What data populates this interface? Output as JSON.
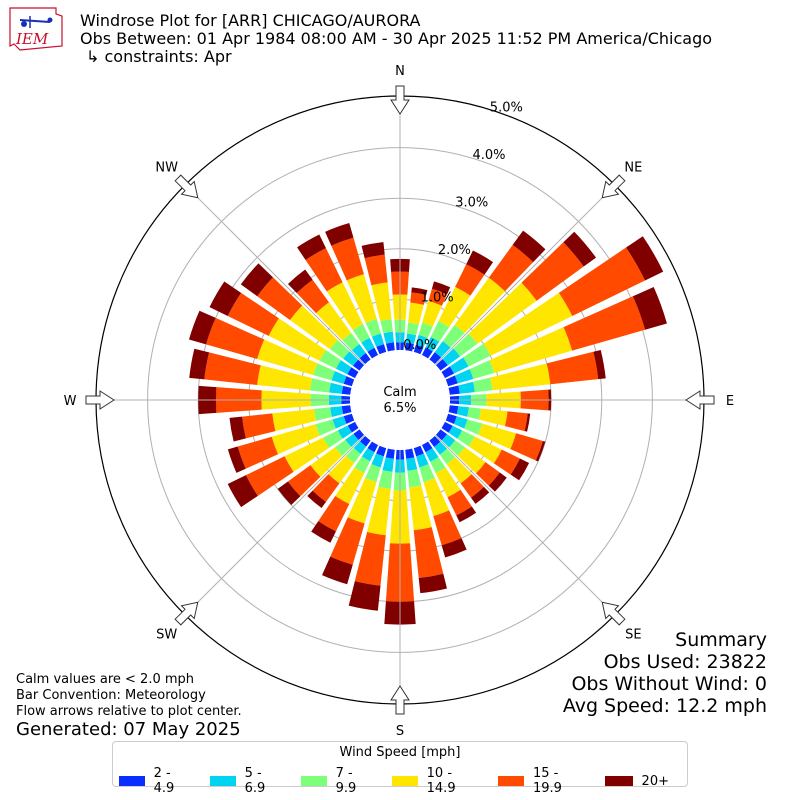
{
  "header": {
    "logo_text": "IEM",
    "title": "Windrose Plot for [ARR] CHICAGO/AURORA",
    "subtitle": "Obs Between: 01 Apr 1984 08:00 AM - 30 Apr 2025 11:52 PM America/Chicago",
    "constraints": "↳ constraints: Apr"
  },
  "summary": {
    "title": "Summary",
    "obs_used": "Obs Used: 23822",
    "obs_without_wind": "Obs Without Wind: 0",
    "avg_speed": "Avg Speed: 12.2 mph"
  },
  "notes": {
    "calm": "Calm values are < 2.0 mph",
    "bar_convention": "Bar Convention: Meteorology",
    "flow": "Flow arrows relative to plot center.",
    "generated": "Generated: 07 May 2025"
  },
  "legend": {
    "title": "Wind Speed [mph]",
    "items": [
      {
        "label": "2 - 4.9",
        "color": "#0a2eff"
      },
      {
        "label": "5 - 6.9",
        "color": "#00d4f0"
      },
      {
        "label": "7 - 9.9",
        "color": "#7dff7a"
      },
      {
        "label": "10 - 14.9",
        "color": "#ffe600"
      },
      {
        "label": "15 - 19.9",
        "color": "#ff4a00"
      },
      {
        "label": "20+",
        "color": "#800000"
      }
    ]
  },
  "chart_data": {
    "type": "windrose",
    "calm_label": "Calm",
    "calm_percent": "6.5%",
    "radial_ticks": [
      "0.0%",
      "1.0%",
      "2.0%",
      "3.0%",
      "4.0%",
      "5.0%"
    ],
    "radial_max": 5.0,
    "directions": [
      "N",
      "NE",
      "E",
      "SE",
      "S",
      "SW",
      "W",
      "NW"
    ],
    "sector_deg": 10,
    "bin_labels": [
      "2 - 4.9",
      "5 - 6.9",
      "7 - 9.9",
      "10 - 14.9",
      "15 - 19.9",
      "20+"
    ],
    "sectors": [
      {
        "dir": 0,
        "cum": [
          0.15,
          0.35,
          0.6,
          1.1,
          1.55,
          1.8
        ]
      },
      {
        "dir": 10,
        "cum": [
          0.15,
          0.33,
          0.55,
          0.95,
          1.15,
          1.25
        ]
      },
      {
        "dir": 20,
        "cum": [
          0.15,
          0.35,
          0.6,
          1.05,
          1.3,
          1.45
        ]
      },
      {
        "dir": 30,
        "cum": [
          0.17,
          0.4,
          0.75,
          1.5,
          2.0,
          2.3
        ]
      },
      {
        "dir": 40,
        "cum": [
          0.18,
          0.45,
          0.85,
          2.0,
          2.8,
          3.15
        ]
      },
      {
        "dir": 50,
        "cum": [
          0.18,
          0.48,
          0.9,
          2.35,
          3.5,
          3.8
        ]
      },
      {
        "dir": 60,
        "cum": [
          0.2,
          0.52,
          1.0,
          2.8,
          4.4,
          4.8
        ]
      },
      {
        "dir": 70,
        "cum": [
          0.2,
          0.52,
          0.95,
          2.55,
          4.05,
          4.5
        ]
      },
      {
        "dir": 80,
        "cum": [
          0.2,
          0.5,
          0.85,
          2.0,
          2.95,
          3.1
        ]
      },
      {
        "dir": 90,
        "cum": [
          0.18,
          0.42,
          0.72,
          1.4,
          1.95,
          2.0
        ]
      },
      {
        "dir": 100,
        "cum": [
          0.17,
          0.38,
          0.62,
          1.15,
          1.55,
          1.6
        ]
      },
      {
        "dir": 110,
        "cum": [
          0.18,
          0.4,
          0.7,
          1.4,
          1.95,
          2.0
        ]
      },
      {
        "dir": 120,
        "cum": [
          0.17,
          0.38,
          0.65,
          1.25,
          1.65,
          1.85
        ]
      },
      {
        "dir": 130,
        "cum": [
          0.16,
          0.36,
          0.6,
          1.1,
          1.45,
          1.62
        ]
      },
      {
        "dir": 140,
        "cum": [
          0.16,
          0.35,
          0.58,
          1.05,
          1.4,
          1.55
        ]
      },
      {
        "dir": 150,
        "cum": [
          0.16,
          0.37,
          0.62,
          1.15,
          1.55,
          1.7
        ]
      },
      {
        "dir": 160,
        "cum": [
          0.17,
          0.4,
          0.7,
          1.4,
          2.0,
          2.25
        ]
      },
      {
        "dir": 170,
        "cum": [
          0.18,
          0.42,
          0.75,
          1.6,
          2.55,
          2.85
        ]
      },
      {
        "dir": 180,
        "cum": [
          0.19,
          0.45,
          0.8,
          1.85,
          3.0,
          3.45
        ]
      },
      {
        "dir": 190,
        "cum": [
          0.18,
          0.44,
          0.78,
          1.7,
          2.7,
          3.2
        ]
      },
      {
        "dir": 200,
        "cum": [
          0.17,
          0.4,
          0.7,
          1.55,
          2.4,
          2.8
        ]
      },
      {
        "dir": 210,
        "cum": [
          0.16,
          0.36,
          0.62,
          1.3,
          1.9,
          2.15
        ]
      },
      {
        "dir": 220,
        "cum": [
          0.15,
          0.33,
          0.55,
          1.05,
          1.5,
          1.65
        ]
      },
      {
        "dir": 230,
        "cum": [
          0.15,
          0.35,
          0.6,
          1.2,
          1.75,
          2.0
        ]
      },
      {
        "dir": 240,
        "cum": [
          0.16,
          0.38,
          0.7,
          1.55,
          2.4,
          2.8
        ]
      },
      {
        "dir": 250,
        "cum": [
          0.17,
          0.4,
          0.75,
          1.65,
          2.35,
          2.55
        ]
      },
      {
        "dir": 260,
        "cum": [
          0.17,
          0.4,
          0.72,
          1.55,
          2.15,
          2.4
        ]
      },
      {
        "dir": 270,
        "cum": [
          0.17,
          0.42,
          0.78,
          1.75,
          2.65,
          3.0
        ]
      },
      {
        "dir": 280,
        "cum": [
          0.17,
          0.42,
          0.8,
          1.85,
          2.9,
          3.2
        ]
      },
      {
        "dir": 290,
        "cum": [
          0.17,
          0.42,
          0.8,
          1.95,
          3.0,
          3.35
        ]
      },
      {
        "dir": 300,
        "cum": [
          0.17,
          0.42,
          0.78,
          1.9,
          2.8,
          3.2
        ]
      },
      {
        "dir": 310,
        "cum": [
          0.16,
          0.4,
          0.72,
          1.7,
          2.5,
          2.9
        ]
      },
      {
        "dir": 320,
        "cum": [
          0.16,
          0.38,
          0.65,
          1.4,
          1.95,
          2.2
        ]
      },
      {
        "dir": 330,
        "cum": [
          0.16,
          0.38,
          0.68,
          1.6,
          2.35,
          2.65
        ]
      },
      {
        "dir": 340,
        "cum": [
          0.16,
          0.38,
          0.68,
          1.6,
          2.35,
          2.65
        ]
      },
      {
        "dir": 350,
        "cum": [
          0.16,
          0.37,
          0.62,
          1.35,
          1.9,
          2.15
        ]
      }
    ]
  }
}
